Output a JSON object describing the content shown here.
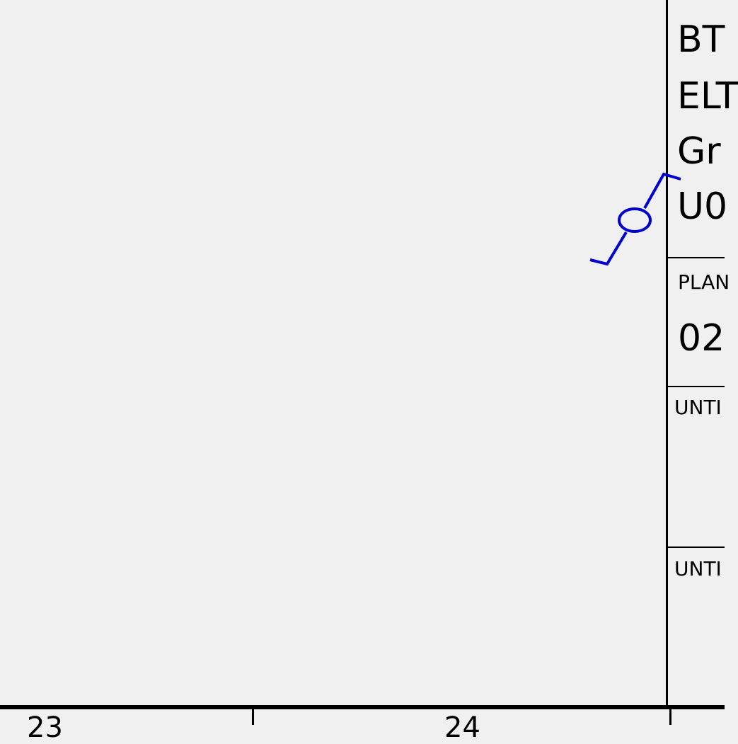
{
  "title_block": {
    "line1": "BT",
    "line2": "ELT",
    "line3": "Gr",
    "line4": "U0",
    "plan_label": "PLAN",
    "plan_number": "02",
    "untitled_1": "UNTI",
    "untitled_2": "UNTI"
  },
  "grid_columns": {
    "col_a": "23",
    "col_b": "24"
  },
  "colors": {
    "background": "#f0f0f0",
    "ink": "#000000",
    "symbol": "#0000d0"
  },
  "icons": {
    "section_marker": "section-cut-marker-icon"
  }
}
